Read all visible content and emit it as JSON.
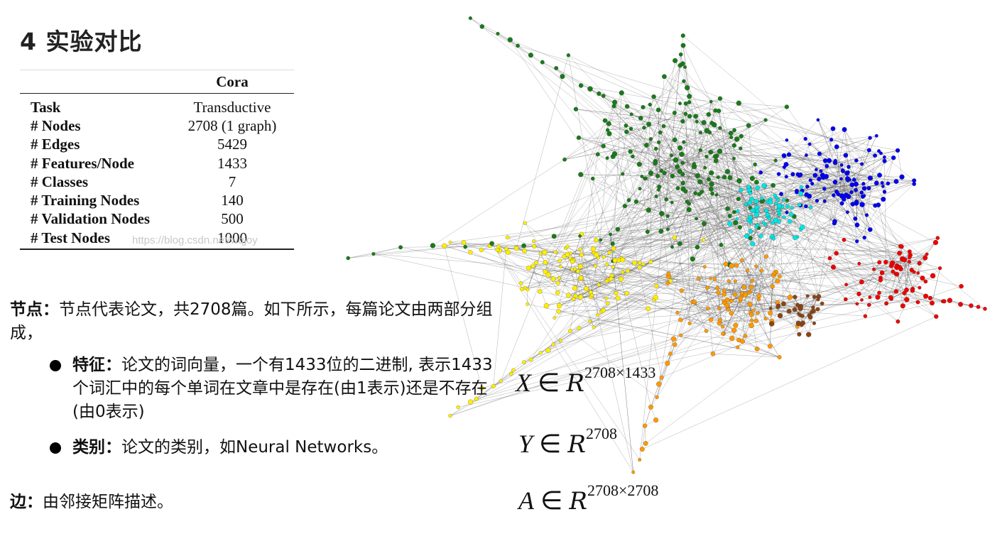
{
  "title": "4 实验对比",
  "table": {
    "dataset_header": "Cora",
    "rows": [
      {
        "label": "Task",
        "value": "Transductive"
      },
      {
        "label": "# Nodes",
        "value": "2708 (1 graph)"
      },
      {
        "label": "# Edges",
        "value": "5429"
      },
      {
        "label": "# Features/Node",
        "value": "1433"
      },
      {
        "label": "# Classes",
        "value": "7"
      },
      {
        "label": "# Training Nodes",
        "value": "140"
      },
      {
        "label": "# Validation Nodes",
        "value": "500"
      },
      {
        "label": "# Test Nodes",
        "value": "1000"
      }
    ]
  },
  "watermark": "https://blog.csdn.net/wqjoy",
  "text": {
    "nodes_label": "节点：",
    "nodes_body": "节点代表论文，共2708篇。如下所示，每篇论文由两部分组成，",
    "feature_label": "特征：",
    "feature_body": "论文的词向量，一个有1433位的二进制, 表示1433个词汇中的每个单词在文章中是存在(由1表示)还是不存在(由0表示)",
    "class_label": "类别：",
    "class_body": "论文的类别，如Neural Networks。",
    "edge_label": "边：",
    "edge_body": "由邻接矩阵描述。"
  },
  "math": {
    "x_var": "X",
    "x_exp": "2708×1433",
    "y_var": "Y",
    "y_exp": "2708",
    "a_var": "A",
    "a_exp": "2708×2708",
    "in_symbol": "∈",
    "space_symbol": "R"
  },
  "graph": {
    "cluster_colors": [
      "#1a7a1a",
      "#0000ee",
      "#00e5e5",
      "#ffee00",
      "#ff9900",
      "#ee0000",
      "#8b4513"
    ]
  }
}
